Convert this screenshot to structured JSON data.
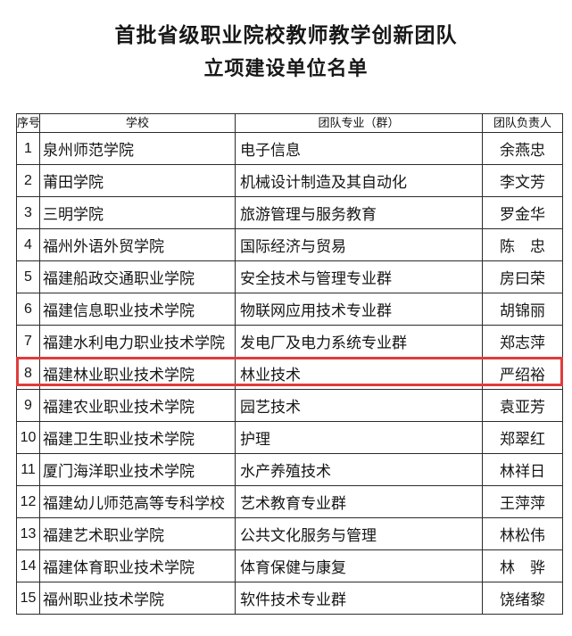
{
  "doc": {
    "title_line1": "首批省级职业院校教师教学创新团队",
    "title_line2": "立项建设单位名单"
  },
  "table": {
    "headers": [
      "序号",
      "学校",
      "团队专业（群）",
      "团队负责人"
    ],
    "rows": [
      {
        "no": "1",
        "school": "泉州师范学院",
        "specialty": "电子信息",
        "leader": "余燕忠"
      },
      {
        "no": "2",
        "school": "莆田学院",
        "specialty": "机械设计制造及其自动化",
        "leader": "李文芳"
      },
      {
        "no": "3",
        "school": "三明学院",
        "specialty": "旅游管理与服务教育",
        "leader": "罗金华"
      },
      {
        "no": "4",
        "school": "福州外语外贸学院",
        "specialty": "国际经济与贸易",
        "leader": "陈　忠"
      },
      {
        "no": "5",
        "school": "福建船政交通职业学院",
        "specialty": "安全技术与管理专业群",
        "leader": "房曰荣"
      },
      {
        "no": "6",
        "school": "福建信息职业技术学院",
        "specialty": "物联网应用技术专业群",
        "leader": "胡锦丽"
      },
      {
        "no": "7",
        "school": "福建水利电力职业技术学院",
        "specialty": "发电厂及电力系统专业群",
        "leader": "郑志萍"
      },
      {
        "no": "8",
        "school": "福建林业职业技术学院",
        "specialty": "林业技术",
        "leader": "严绍裕"
      },
      {
        "no": "9",
        "school": "福建农业职业技术学院",
        "specialty": "园艺技术",
        "leader": "袁亚芳"
      },
      {
        "no": "10",
        "school": "福建卫生职业技术学院",
        "specialty": "护理",
        "leader": "郑翠红"
      },
      {
        "no": "11",
        "school": "厦门海洋职业技术学院",
        "specialty": "水产养殖技术",
        "leader": "林祥日"
      },
      {
        "no": "12",
        "school": "福建幼儿师范高等专科学校",
        "specialty": "艺术教育专业群",
        "leader": "王萍萍"
      },
      {
        "no": "13",
        "school": "福建艺术职业学院",
        "specialty": "公共文化服务与管理",
        "leader": "林松伟"
      },
      {
        "no": "14",
        "school": "福建体育职业技术学院",
        "specialty": "体育保健与康复",
        "leader": "林　骅"
      },
      {
        "no": "15",
        "school": "福州职业技术学院",
        "specialty": "软件技术专业群",
        "leader": "饶绪黎"
      }
    ],
    "highlight": {
      "row_no": "8",
      "color": "#e03c3c"
    }
  }
}
